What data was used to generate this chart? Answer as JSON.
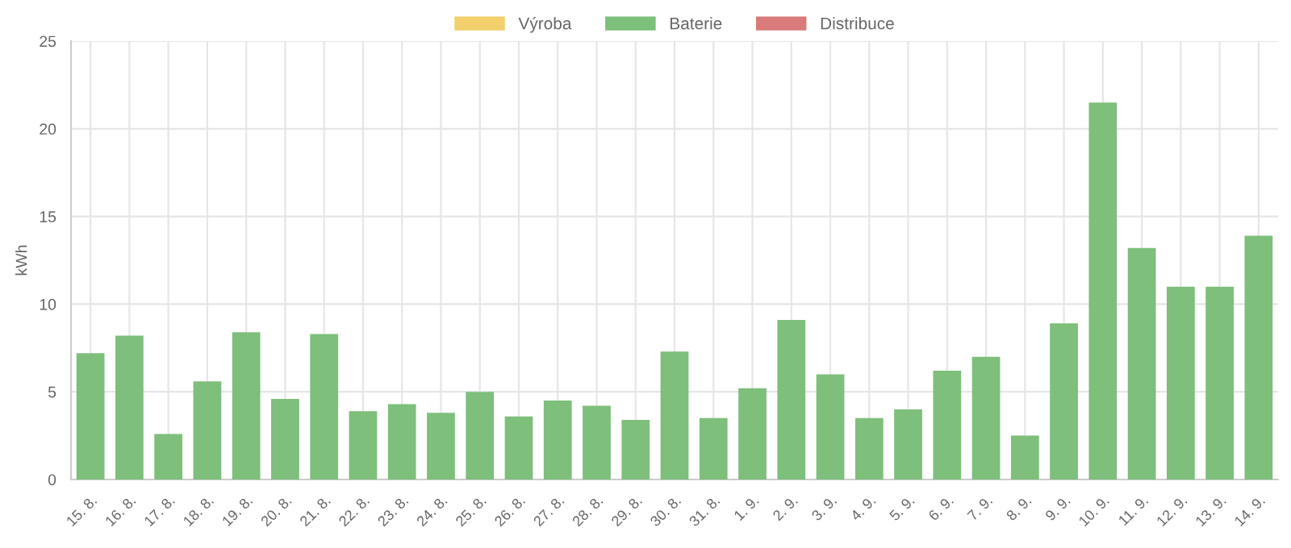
{
  "chart_data": {
    "type": "bar",
    "ylabel": "kWh",
    "categories": [
      "15. 8.",
      "16. 8.",
      "17. 8.",
      "18. 8.",
      "19. 8.",
      "20. 8.",
      "21. 8.",
      "22. 8.",
      "23. 8.",
      "24. 8.",
      "25. 8.",
      "26. 8.",
      "27. 8.",
      "28. 8.",
      "29. 8.",
      "30. 8.",
      "31. 8.",
      "1. 9.",
      "2. 9.",
      "3. 9.",
      "4. 9.",
      "5. 9.",
      "6. 9.",
      "7. 9.",
      "8. 9.",
      "9. 9.",
      "10. 9.",
      "11. 9.",
      "12. 9.",
      "13. 9.",
      "14. 9."
    ],
    "series": [
      {
        "name": "Výroba",
        "color": "#f2d06b",
        "values": [
          null,
          null,
          null,
          null,
          null,
          null,
          null,
          null,
          null,
          null,
          null,
          null,
          null,
          null,
          null,
          null,
          null,
          null,
          null,
          null,
          null,
          null,
          null,
          null,
          null,
          null,
          null,
          null,
          null,
          null,
          null
        ]
      },
      {
        "name": "Baterie",
        "color": "#7dbf7b",
        "values": [
          7.2,
          8.2,
          2.6,
          5.6,
          8.4,
          4.6,
          8.3,
          3.9,
          4.3,
          3.8,
          5.0,
          3.6,
          4.5,
          4.2,
          3.4,
          7.3,
          3.5,
          5.2,
          9.1,
          6.0,
          3.5,
          4.0,
          6.2,
          7.0,
          2.5,
          8.9,
          21.5,
          13.2,
          11.0,
          11.0,
          13.9
        ]
      },
      {
        "name": "Distribuce",
        "color": "#d97b7b",
        "values": [
          null,
          null,
          null,
          null,
          null,
          null,
          null,
          null,
          null,
          null,
          null,
          null,
          null,
          null,
          null,
          null,
          null,
          null,
          null,
          null,
          null,
          null,
          null,
          null,
          null,
          null,
          null,
          null,
          null,
          null,
          null
        ]
      }
    ],
    "ylim": [
      0,
      25
    ],
    "yticks": [
      0,
      5,
      10,
      15,
      20,
      25
    ],
    "grid": true,
    "legend": "top"
  }
}
